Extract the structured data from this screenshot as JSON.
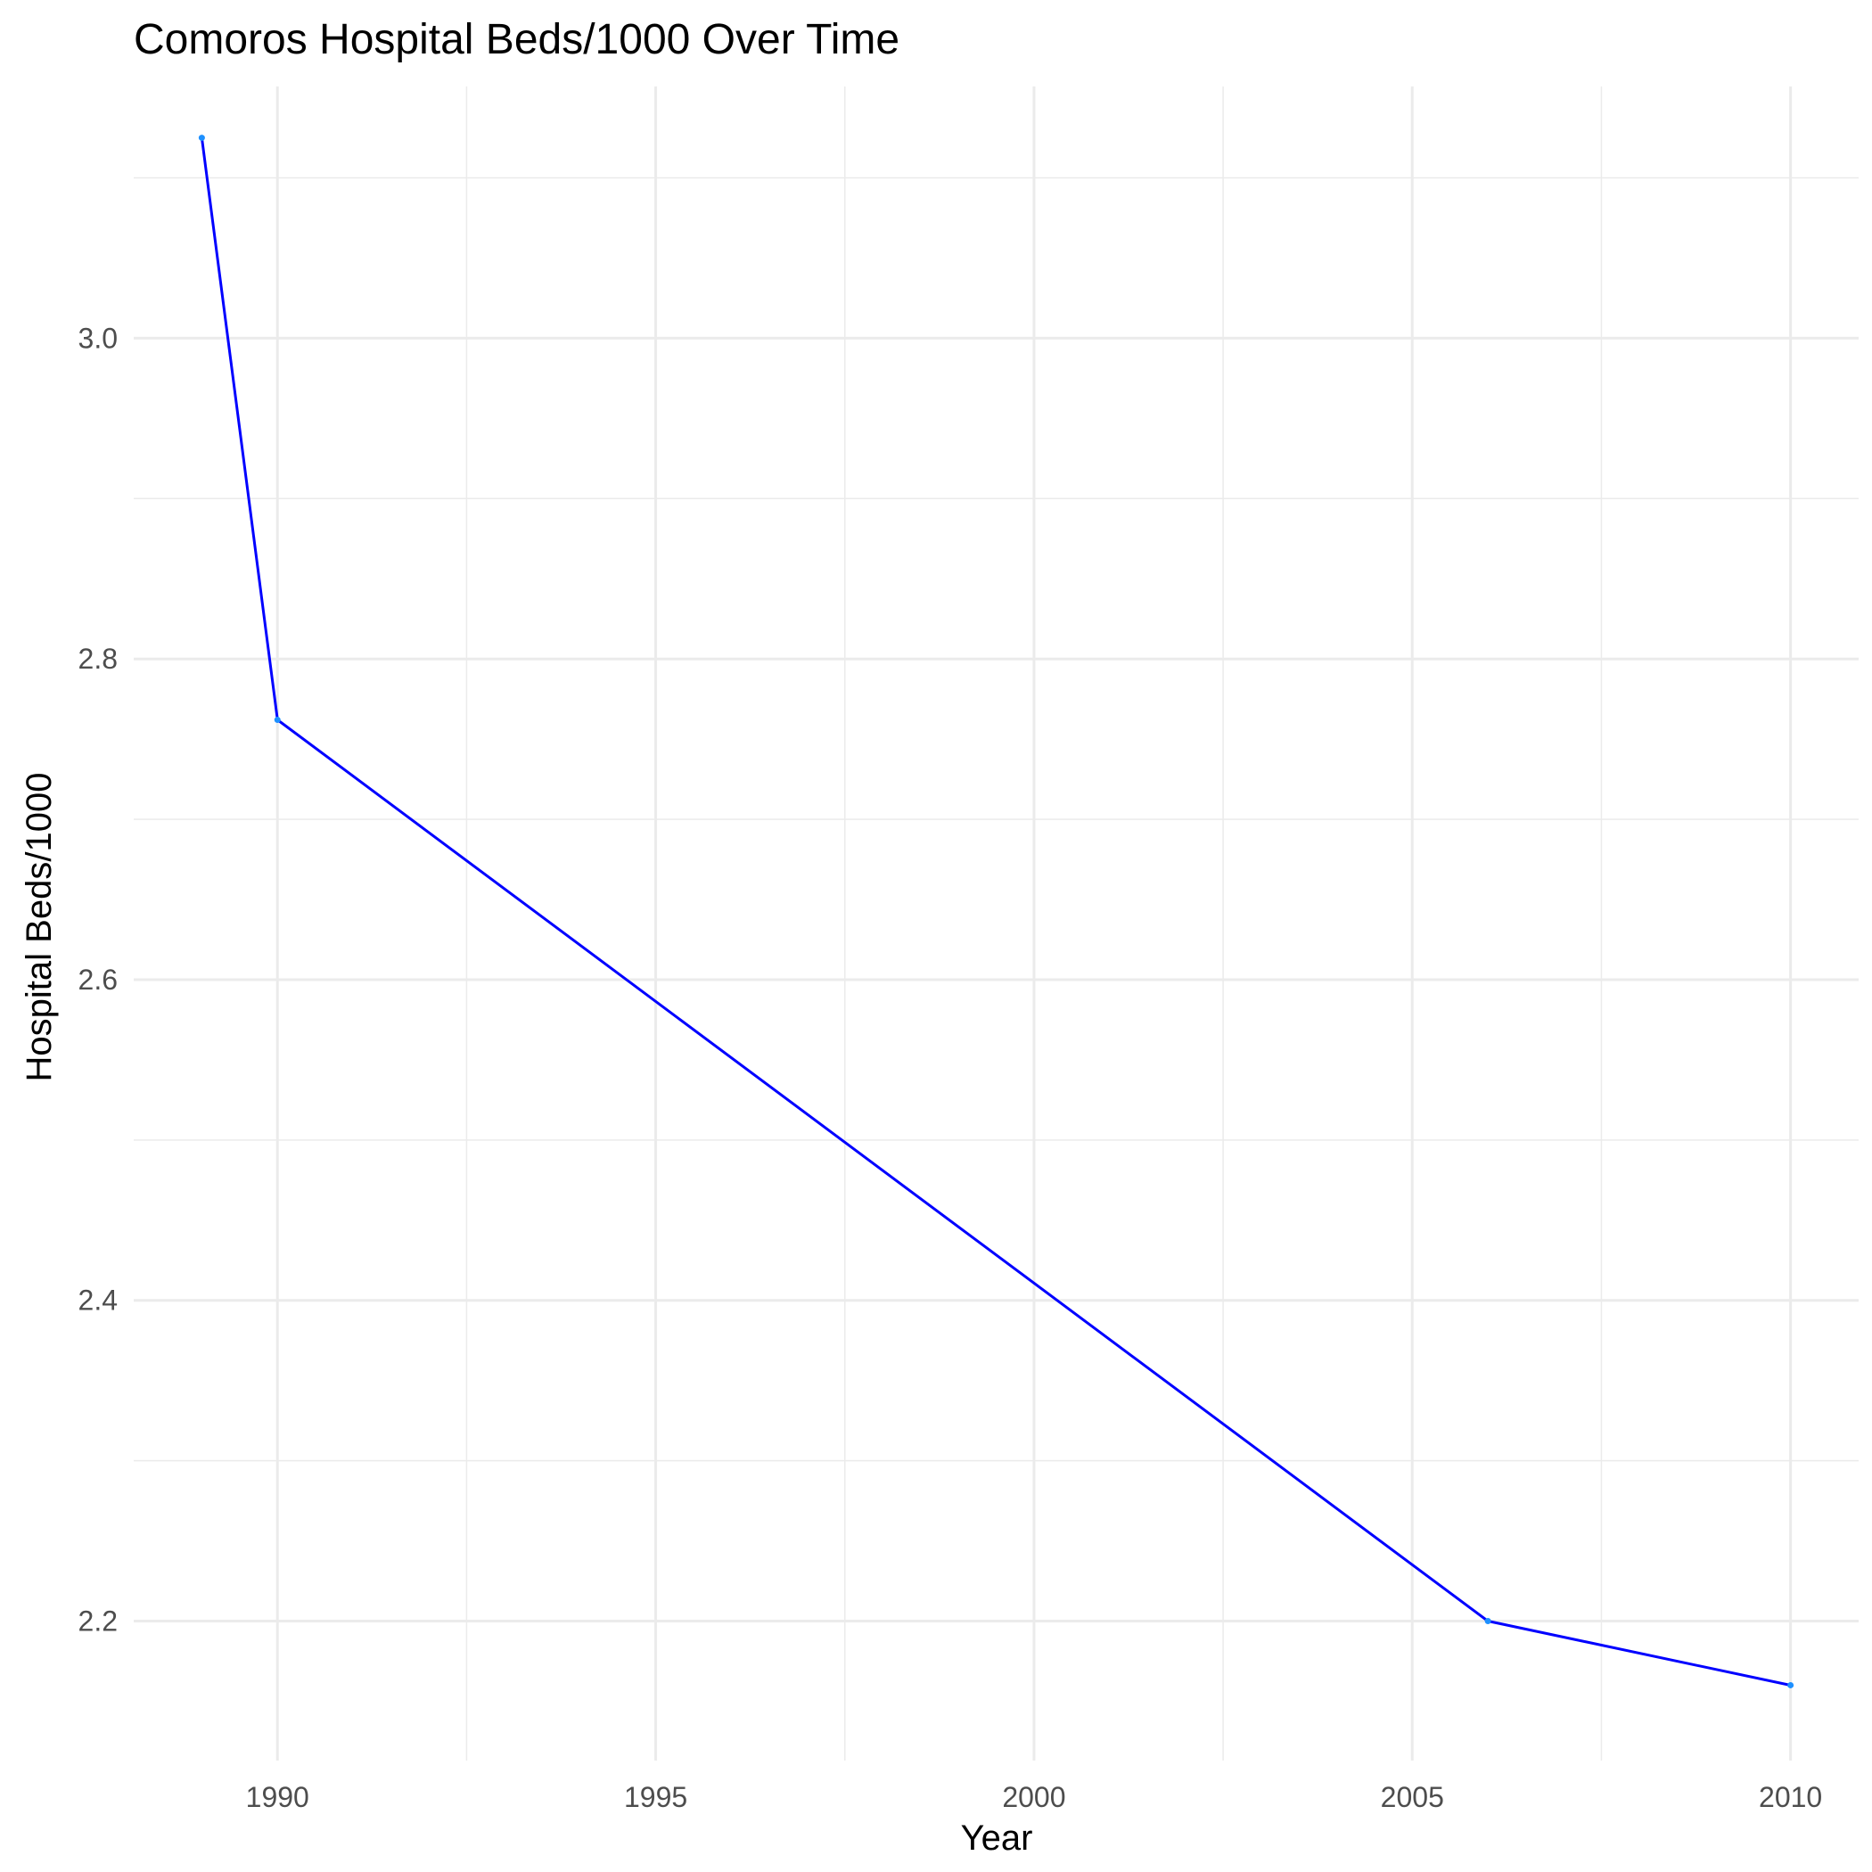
{
  "chart_data": {
    "type": "line",
    "title": "Comoros Hospital Beds/1000 Over Time",
    "xlabel": "Year",
    "ylabel": "Hospital Beds/1000",
    "xlim": [
      1988.1,
      2010.9
    ],
    "ylim": [
      2.113,
      3.157
    ],
    "x_ticks": [
      1990,
      1995,
      2000,
      2005,
      2010
    ],
    "y_ticks": [
      2.2,
      2.4,
      2.6,
      2.8,
      3.0
    ],
    "grid": true,
    "line_color": "#0000ff",
    "point_color": "#1e90ff",
    "series": [
      {
        "x": [
          1989,
          1990,
          2006,
          2010
        ],
        "values": [
          3.125,
          2.762,
          2.2,
          2.16
        ]
      }
    ]
  }
}
